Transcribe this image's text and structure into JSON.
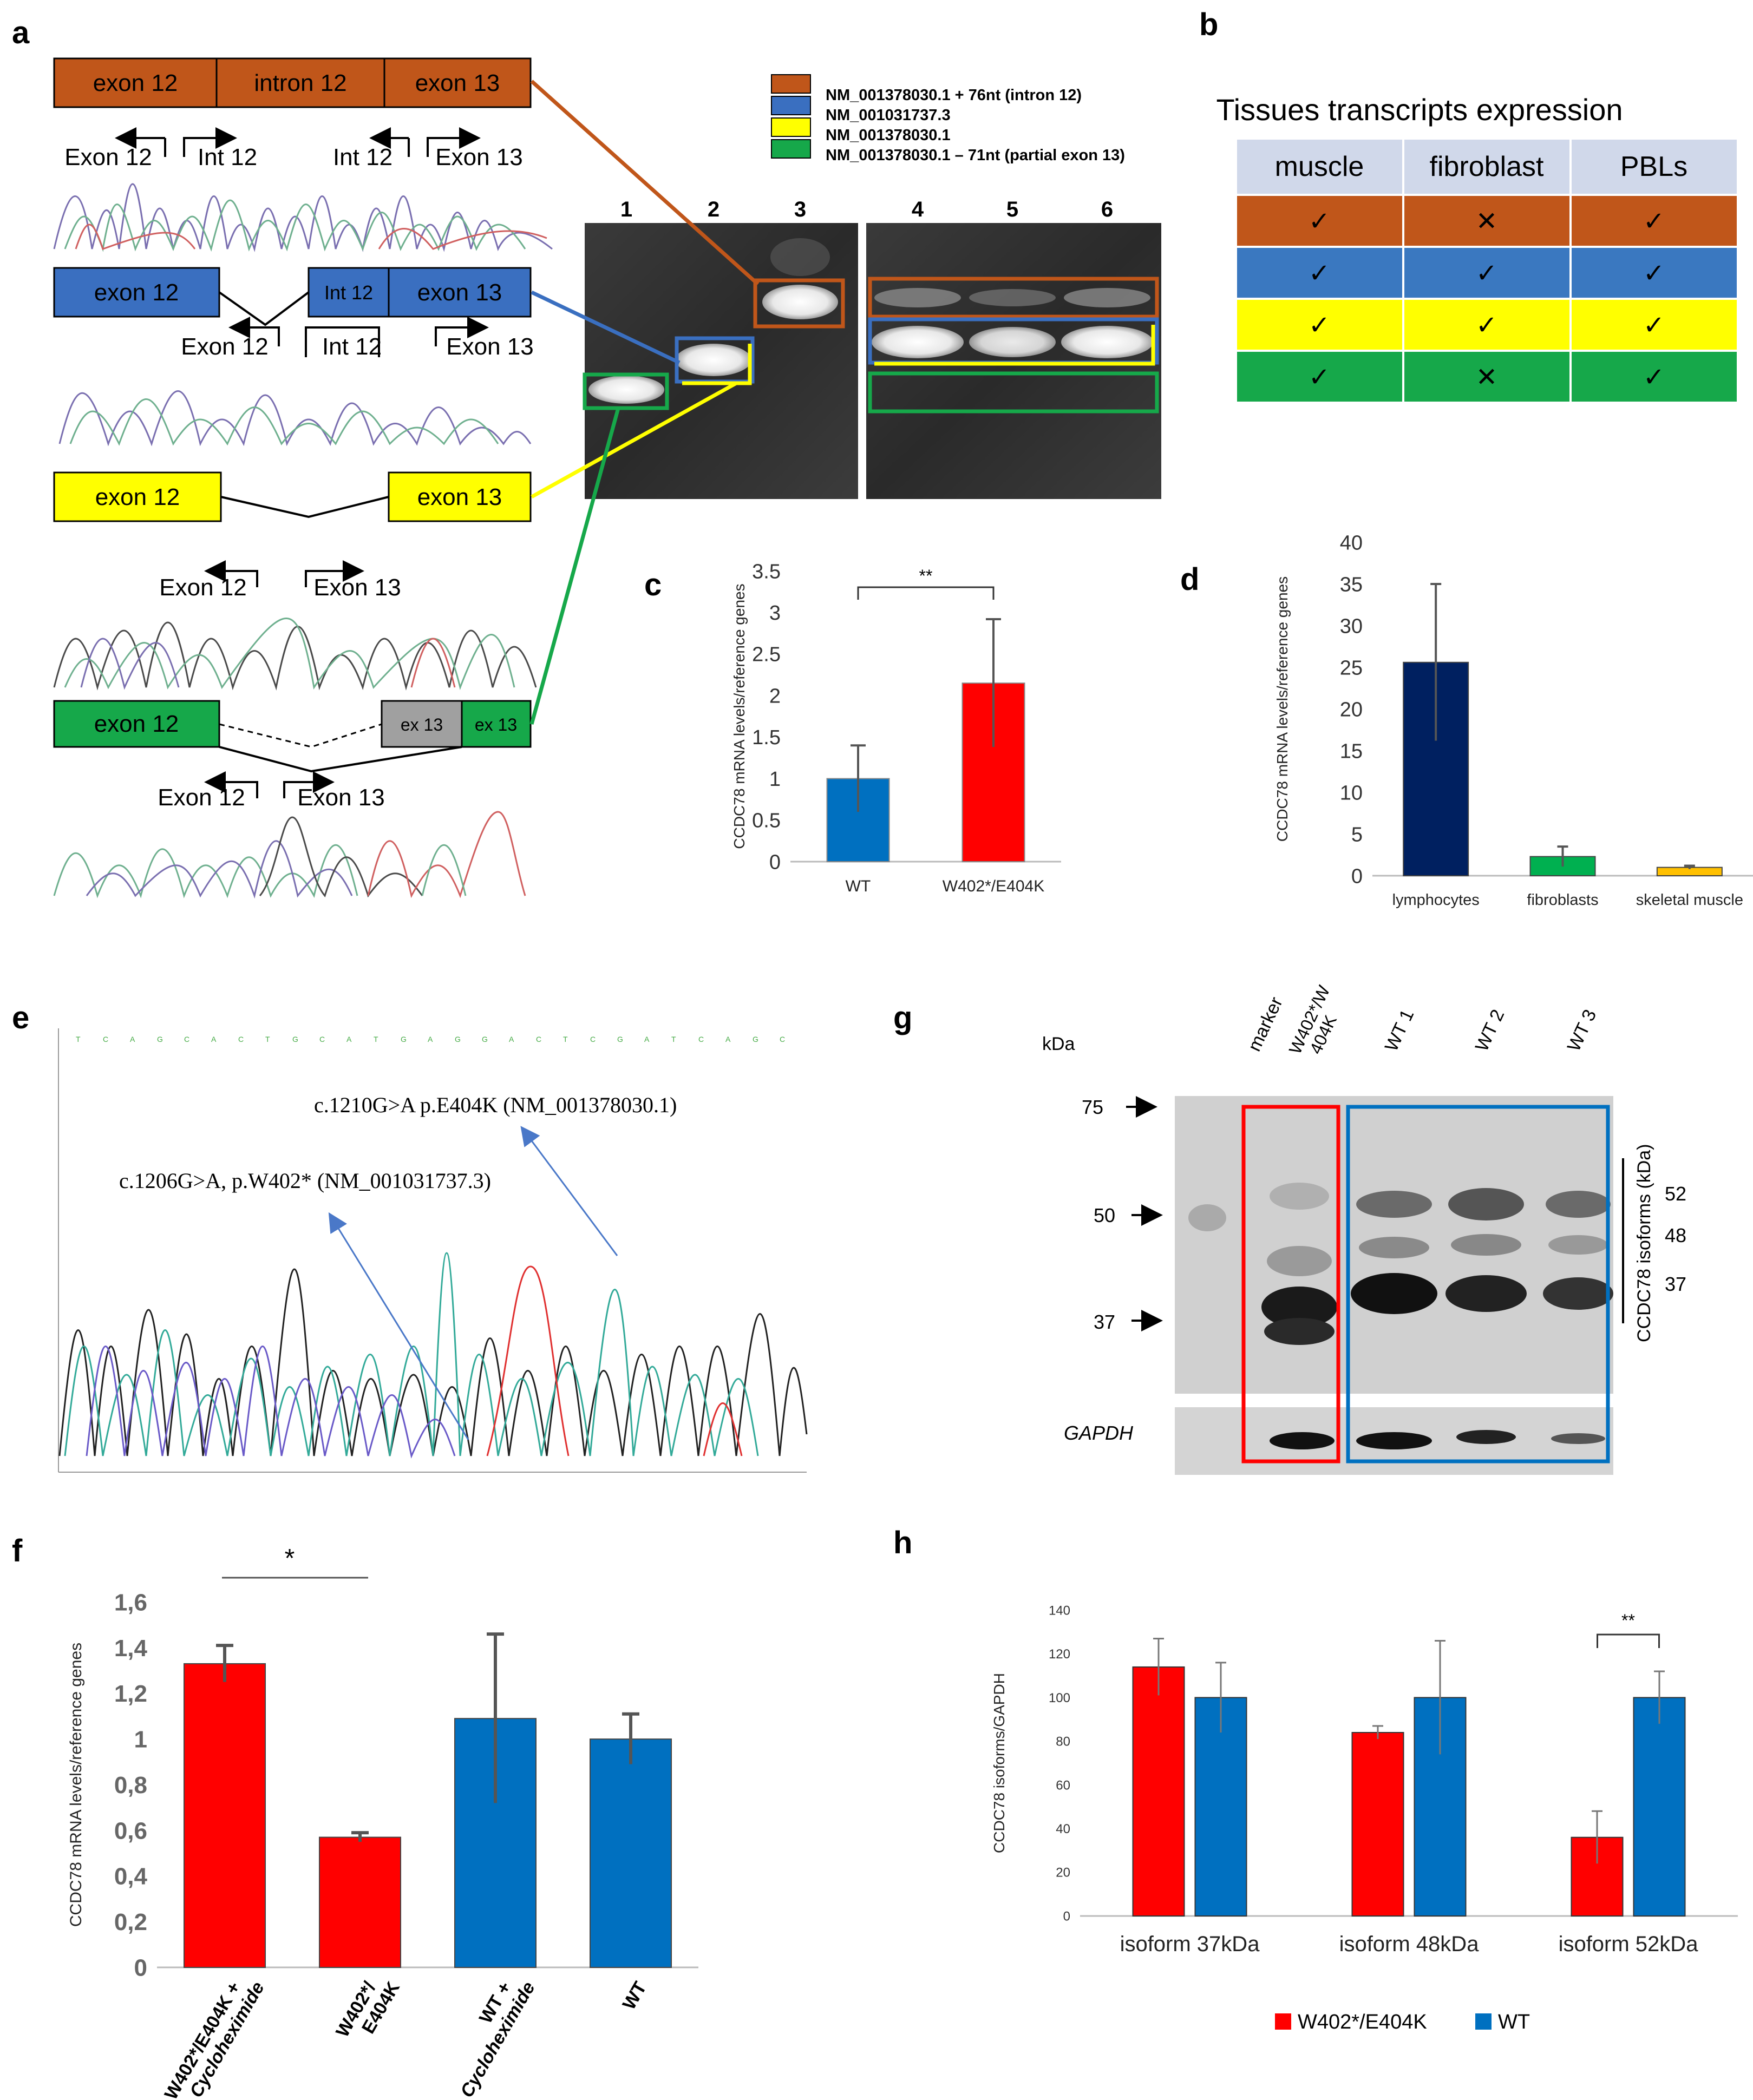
{
  "panel_letters": {
    "a": "a",
    "b": "b",
    "c": "c",
    "d": "d",
    "e": "e",
    "f": "f",
    "g": "g",
    "h": "h"
  },
  "colors": {
    "orange": "#c0561a",
    "blue": "#3a6fc0",
    "yellow": "#ffff00",
    "green": "#16a84a",
    "red": "#ff0000",
    "barblue": "#0070c0",
    "navy": "#002060",
    "gbar": "#00b050",
    "gold": "#ffc000"
  },
  "panel_a": {
    "rows": [
      {
        "segments": [
          "exon 12",
          "intron 12",
          "exon 13"
        ],
        "primers": [
          "Exon 12",
          "Int 12",
          "Int 12",
          "Exon 13"
        ]
      },
      {
        "segments": [
          "exon 12",
          "Int 12",
          "exon 13"
        ],
        "primers": [
          "Exon 12",
          "Int 12",
          "Exon 13"
        ]
      },
      {
        "segments": [
          "exon 12",
          "exon 13"
        ],
        "primers": [
          "Exon 12",
          "Exon 13"
        ]
      },
      {
        "segments": [
          "exon 12",
          "ex 13",
          "ex 13"
        ],
        "primers": [
          "Exon 12",
          "Exon 13"
        ]
      }
    ],
    "legend": [
      "NM_001378030.1 + 76nt (intron 12)",
      "NM_001031737.3",
      "NM_001378030.1",
      "NM_001378030.1 – 71nt (partial exon 13)"
    ],
    "lanes": [
      "1",
      "2",
      "3",
      "4",
      "5",
      "6"
    ]
  },
  "panel_b": {
    "title": "Tissues transcripts expression",
    "headers": [
      "muscle",
      "fibroblast",
      "PBLs"
    ],
    "rows": [
      [
        "✓",
        "✕",
        "✓"
      ],
      [
        "✓",
        "✓",
        "✓"
      ],
      [
        "✓",
        "✓",
        "✓"
      ],
      [
        "✓",
        "✕",
        "✓"
      ]
    ]
  },
  "panel_e": {
    "ann1": "c.1210G>A p.E404K (NM_001378030.1)",
    "ann2": "c.1206G>A, p.W402* (NM_001031737.3)"
  },
  "panel_g": {
    "kda_label": "kDa",
    "lane_labels": [
      "marker",
      "W402*/W",
      "404K",
      "WT 1",
      "WT 2",
      "WT 3"
    ],
    "markers": [
      "75",
      "50",
      "37"
    ],
    "isoform_label": "CCDC78 isoforms (kDa)",
    "isoforms": [
      "52",
      "48",
      "37"
    ],
    "gapdh": "GAPDH"
  },
  "chart_data": [
    {
      "id": "c",
      "type": "bar",
      "categories": [
        "WT",
        "W402*/E404K"
      ],
      "values": [
        1.0,
        2.15
      ],
      "errors": [
        0.4,
        0.77
      ],
      "ylabel": "CCDC78 mRNA levels/reference genes",
      "ylim": [
        0,
        3.5
      ],
      "yticks": [
        "0",
        "0.5",
        "1",
        "1.5",
        "2",
        "2.5",
        "3",
        "3.5"
      ],
      "significance": "**"
    },
    {
      "id": "d",
      "type": "bar",
      "categories": [
        "lymphocytes",
        "fibroblasts",
        "skeletal muscle"
      ],
      "values": [
        25.6,
        2.3,
        1.0
      ],
      "errors": [
        9.4,
        1.2,
        0.2
      ],
      "ylabel": "CCDC78 mRNA levels/reference genes",
      "ylim": [
        0,
        40
      ],
      "yticks": [
        "0",
        "5",
        "10",
        "15",
        "20",
        "25",
        "30",
        "35",
        "40"
      ]
    },
    {
      "id": "f",
      "type": "bar",
      "categories": [
        "W402*/E404K + Cycloheximide",
        "W402*/ E404K",
        "WT + Cycloheximide",
        "WT"
      ],
      "values": [
        1.33,
        0.57,
        1.09,
        1.0
      ],
      "errors": [
        0.08,
        0.02,
        0.37,
        0.11
      ],
      "ylabel": "CCDC78 mRNA levels/reference genes",
      "ylim": [
        0,
        1.6
      ],
      "yticks": [
        "0",
        "0,2",
        "0,4",
        "0,6",
        "0,8",
        "1",
        "1,2",
        "1,4",
        "1,6"
      ],
      "significance": "*"
    },
    {
      "id": "h",
      "type": "bar",
      "categories": [
        "isoform 37kDa",
        "isoform 48kDa",
        "isoform 52kDa"
      ],
      "series": [
        {
          "name": "W402*/E404K",
          "values": [
            114,
            84,
            36
          ],
          "errors": [
            13,
            3,
            12
          ]
        },
        {
          "name": "WT",
          "values": [
            100,
            100,
            100
          ],
          "errors": [
            16,
            26,
            12
          ]
        }
      ],
      "ylabel": "CCDC78 isoforms/GAPDH",
      "ylim": [
        0,
        140
      ],
      "yticks": [
        "0",
        "20",
        "40",
        "60",
        "80",
        "100",
        "120",
        "140"
      ],
      "significance": "**",
      "legend": "bottom"
    }
  ]
}
